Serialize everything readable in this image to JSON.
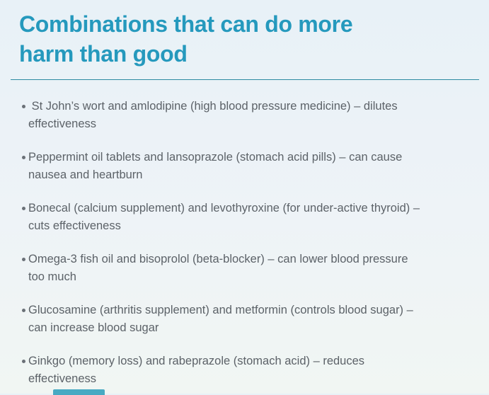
{
  "theme": {
    "background_top": "#e8f1f7",
    "background_bottom": "#f1f6f3",
    "heading_color": "#2599bd",
    "divider_color": "#2d8ba1",
    "text_color": "#5c6268",
    "bullet_color": "#6a7077",
    "accent_teal": "#2a9cba"
  },
  "header": {
    "title": "Combinations that can do more\nharm than good"
  },
  "list": {
    "items": [
      {
        "text": " St John’s wort and amlodipine (high blood pressure medicine) – dilutes\neffectiveness"
      },
      {
        "text": "Peppermint oil tablets and lansoprazole (stomach acid pills) – can cause\nnausea and heartburn"
      },
      {
        "text": "Bonecal (calcium supplement) and levothyroxine (for under-active thyroid) –\ncuts effectiveness"
      },
      {
        "text": "Omega-3 fish oil and bisoprolol (beta-blocker) – can lower blood pressure\ntoo much"
      },
      {
        "text": "Glucosamine (arthritis supplement) and metformin (controls blood sugar) –\ncan increase blood sugar"
      },
      {
        "text": "Ginkgo (memory loss) and rabeprazole (stomach acid) – reduces\neffectiveness"
      }
    ]
  }
}
